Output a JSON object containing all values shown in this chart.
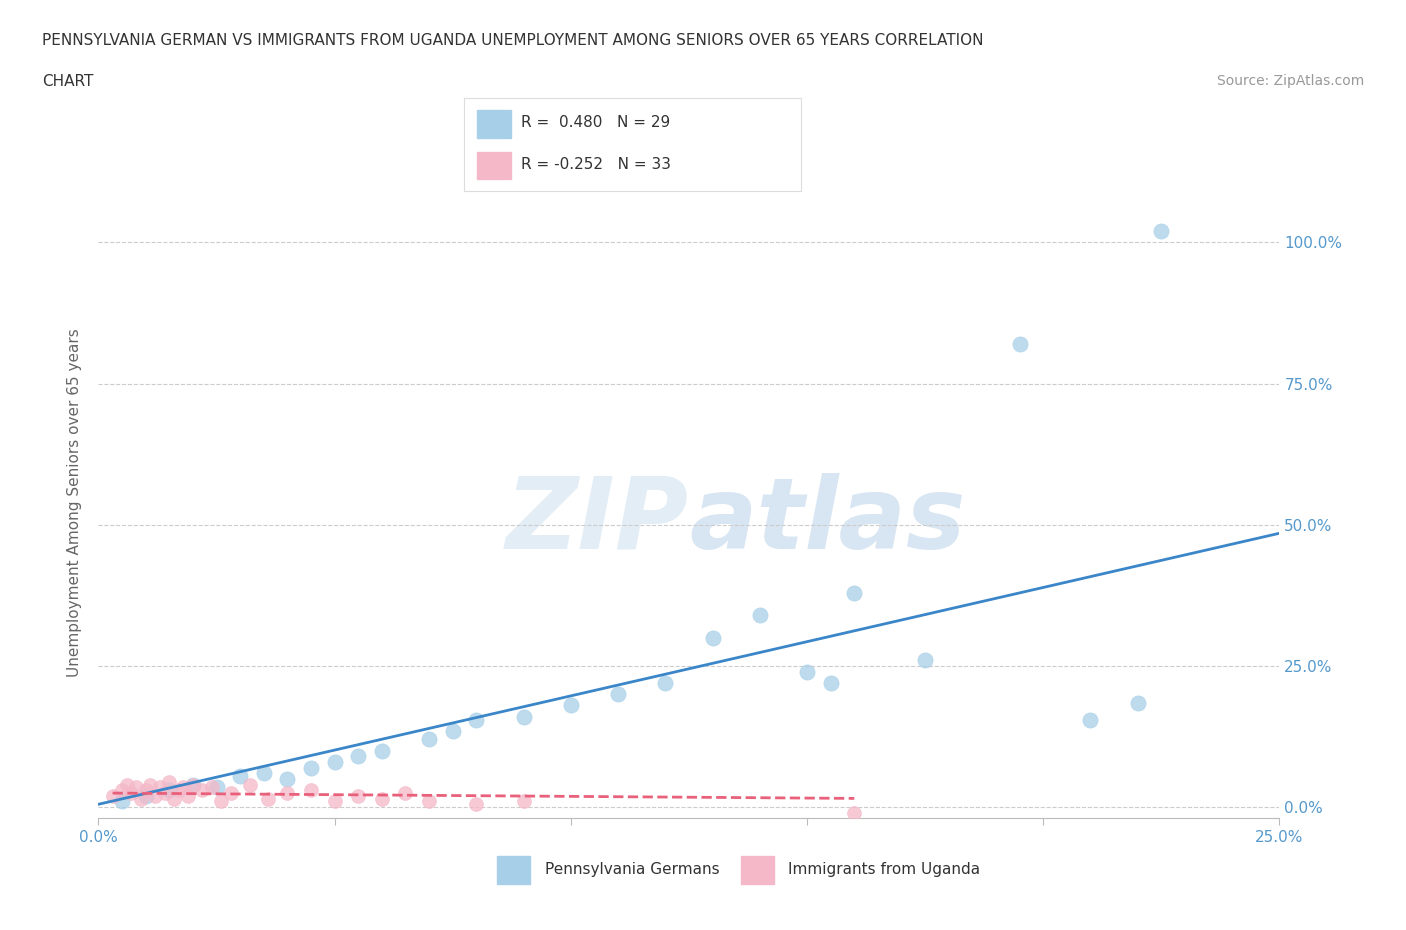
{
  "title_line1": "PENNSYLVANIA GERMAN VS IMMIGRANTS FROM UGANDA UNEMPLOYMENT AMONG SENIORS OVER 65 YEARS CORRELATION",
  "title_line2": "CHART",
  "source_text": "Source: ZipAtlas.com",
  "ylabel": "Unemployment Among Seniors over 65 years",
  "background_color": "#ffffff",
  "watermark_zip": "ZIP",
  "watermark_atlas": "atlas",
  "r_blue": 0.48,
  "n_blue": 29,
  "r_pink": -0.252,
  "n_pink": 33,
  "xlim": [
    0.0,
    0.25
  ],
  "ylim": [
    -0.02,
    1.1
  ],
  "xticks": [
    0.0,
    0.05,
    0.1,
    0.15,
    0.2,
    0.25
  ],
  "yticks": [
    0.0,
    0.25,
    0.5,
    0.75,
    1.0
  ],
  "ytick_labels": [
    "0.0%",
    "25.0%",
    "50.0%",
    "75.0%",
    "100.0%"
  ],
  "xtick_labels": [
    "0.0%",
    "",
    "",
    "",
    "",
    "25.0%"
  ],
  "blue_scatter_x": [
    0.005,
    0.01,
    0.015,
    0.02,
    0.025,
    0.03,
    0.035,
    0.04,
    0.045,
    0.05,
    0.055,
    0.06,
    0.07,
    0.075,
    0.08,
    0.09,
    0.1,
    0.11,
    0.12,
    0.13,
    0.14,
    0.15,
    0.155,
    0.16,
    0.175,
    0.195,
    0.21,
    0.22,
    0.225
  ],
  "blue_scatter_y": [
    0.01,
    0.02,
    0.03,
    0.04,
    0.035,
    0.055,
    0.06,
    0.05,
    0.07,
    0.08,
    0.09,
    0.1,
    0.12,
    0.135,
    0.155,
    0.16,
    0.18,
    0.2,
    0.22,
    0.3,
    0.34,
    0.24,
    0.22,
    0.38,
    0.26,
    0.82,
    0.155,
    0.185,
    1.02
  ],
  "pink_scatter_x": [
    0.003,
    0.005,
    0.006,
    0.007,
    0.008,
    0.009,
    0.01,
    0.011,
    0.012,
    0.013,
    0.014,
    0.015,
    0.016,
    0.017,
    0.018,
    0.019,
    0.02,
    0.022,
    0.024,
    0.026,
    0.028,
    0.032,
    0.036,
    0.04,
    0.045,
    0.05,
    0.055,
    0.06,
    0.065,
    0.07,
    0.08,
    0.09,
    0.16
  ],
  "pink_scatter_y": [
    0.02,
    0.03,
    0.04,
    0.025,
    0.035,
    0.015,
    0.03,
    0.04,
    0.02,
    0.035,
    0.025,
    0.045,
    0.015,
    0.03,
    0.035,
    0.02,
    0.04,
    0.03,
    0.035,
    0.01,
    0.025,
    0.04,
    0.015,
    0.025,
    0.03,
    0.01,
    0.02,
    0.015,
    0.025,
    0.01,
    0.005,
    0.01,
    -0.01
  ],
  "blue_color": "#a8cfe8",
  "pink_color": "#f4b8c8",
  "blue_line_color": "#3a86c8",
  "pink_line_color": "#e8607a",
  "grid_color": "#cccccc",
  "tick_label_color": "#5599cc",
  "axis_label_color": "#666666",
  "title_color": "#333333",
  "legend_border_color": "#dddddd"
}
